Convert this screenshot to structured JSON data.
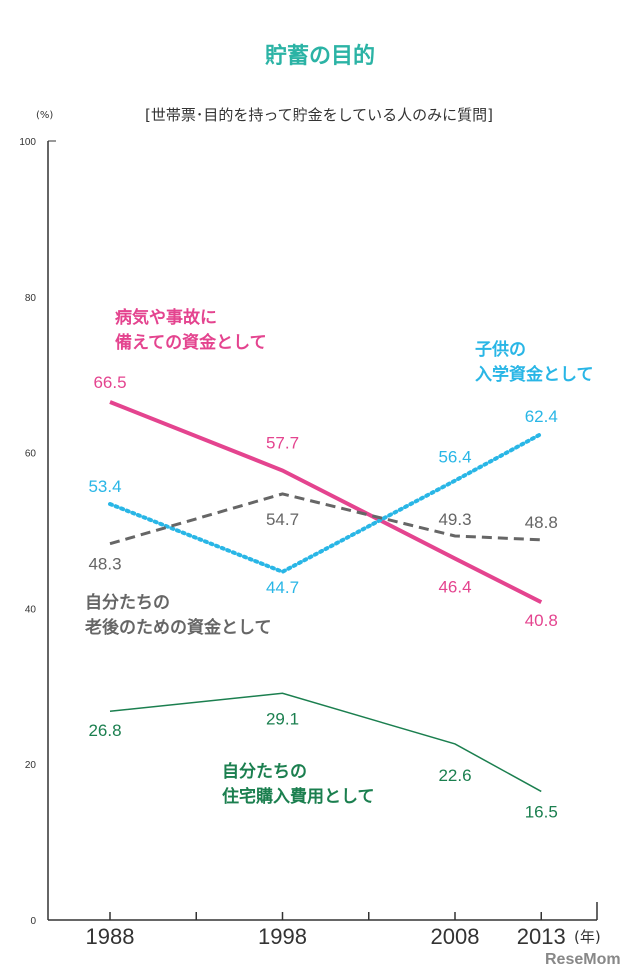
{
  "chart_data": {
    "type": "line",
    "title": "貯蓄の目的",
    "subtitle": "[世帯票･目的を持って貯金をしている人のみに質問]",
    "ylabel": "(%)",
    "xlabel": "(年)",
    "x": [
      1988,
      1998,
      2008,
      2013
    ],
    "x_tick_labels": [
      "1988",
      "1998",
      "2008",
      "2013"
    ],
    "ylim": [
      0,
      100
    ],
    "y_ticks": [
      0,
      20,
      40,
      60,
      80,
      100
    ],
    "grid": false,
    "series": [
      {
        "name": "病気や事故に備えての資金として",
        "label_lines": [
          "病気や事故に",
          "備えての資金として"
        ],
        "values": [
          66.5,
          57.7,
          46.4,
          40.8
        ],
        "color": "#e4448f",
        "style": "solid-thick"
      },
      {
        "name": "子供の入学資金として",
        "label_lines": [
          "子供の",
          "入学資金として"
        ],
        "values": [
          53.4,
          44.7,
          56.4,
          62.4
        ],
        "color": "#29b6e6",
        "style": "dotted"
      },
      {
        "name": "自分たちの老後のための資金として",
        "label_lines": [
          "自分たちの",
          "老後のための資金として"
        ],
        "values": [
          48.3,
          54.7,
          49.3,
          48.8
        ],
        "color": "#666666",
        "style": "dashed"
      },
      {
        "name": "自分たちの住宅購入費用として",
        "label_lines": [
          "自分たちの",
          "住宅購入費用として"
        ],
        "values": [
          26.8,
          29.1,
          22.6,
          16.5
        ],
        "color": "#1b7f4f",
        "style": "solid-thin"
      }
    ]
  },
  "watermark": "ReseMom"
}
